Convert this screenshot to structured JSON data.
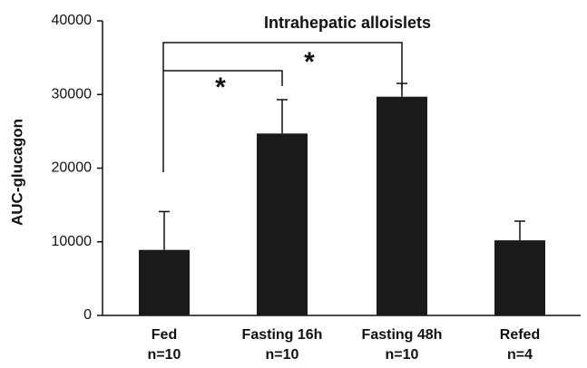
{
  "chart_data": {
    "type": "bar",
    "title": "Intrahepatic alloislets",
    "y_label": "AUC-glucagon",
    "categories": [
      "Fed",
      "Fasting 16h",
      "Fasting 48h",
      "Refed"
    ],
    "sample_sizes": [
      "n=10",
      "n=10",
      "n=10",
      "n=4"
    ],
    "values": [
      8900,
      24700,
      29700,
      10200
    ],
    "errors": [
      5200,
      4600,
      1800,
      2600
    ],
    "color": "#1a1a1a",
    "ylim": [
      0,
      40000
    ],
    "yticks": [
      0,
      10000,
      20000,
      30000,
      40000
    ],
    "grid": false,
    "annotations": [
      "*",
      "*"
    ]
  }
}
